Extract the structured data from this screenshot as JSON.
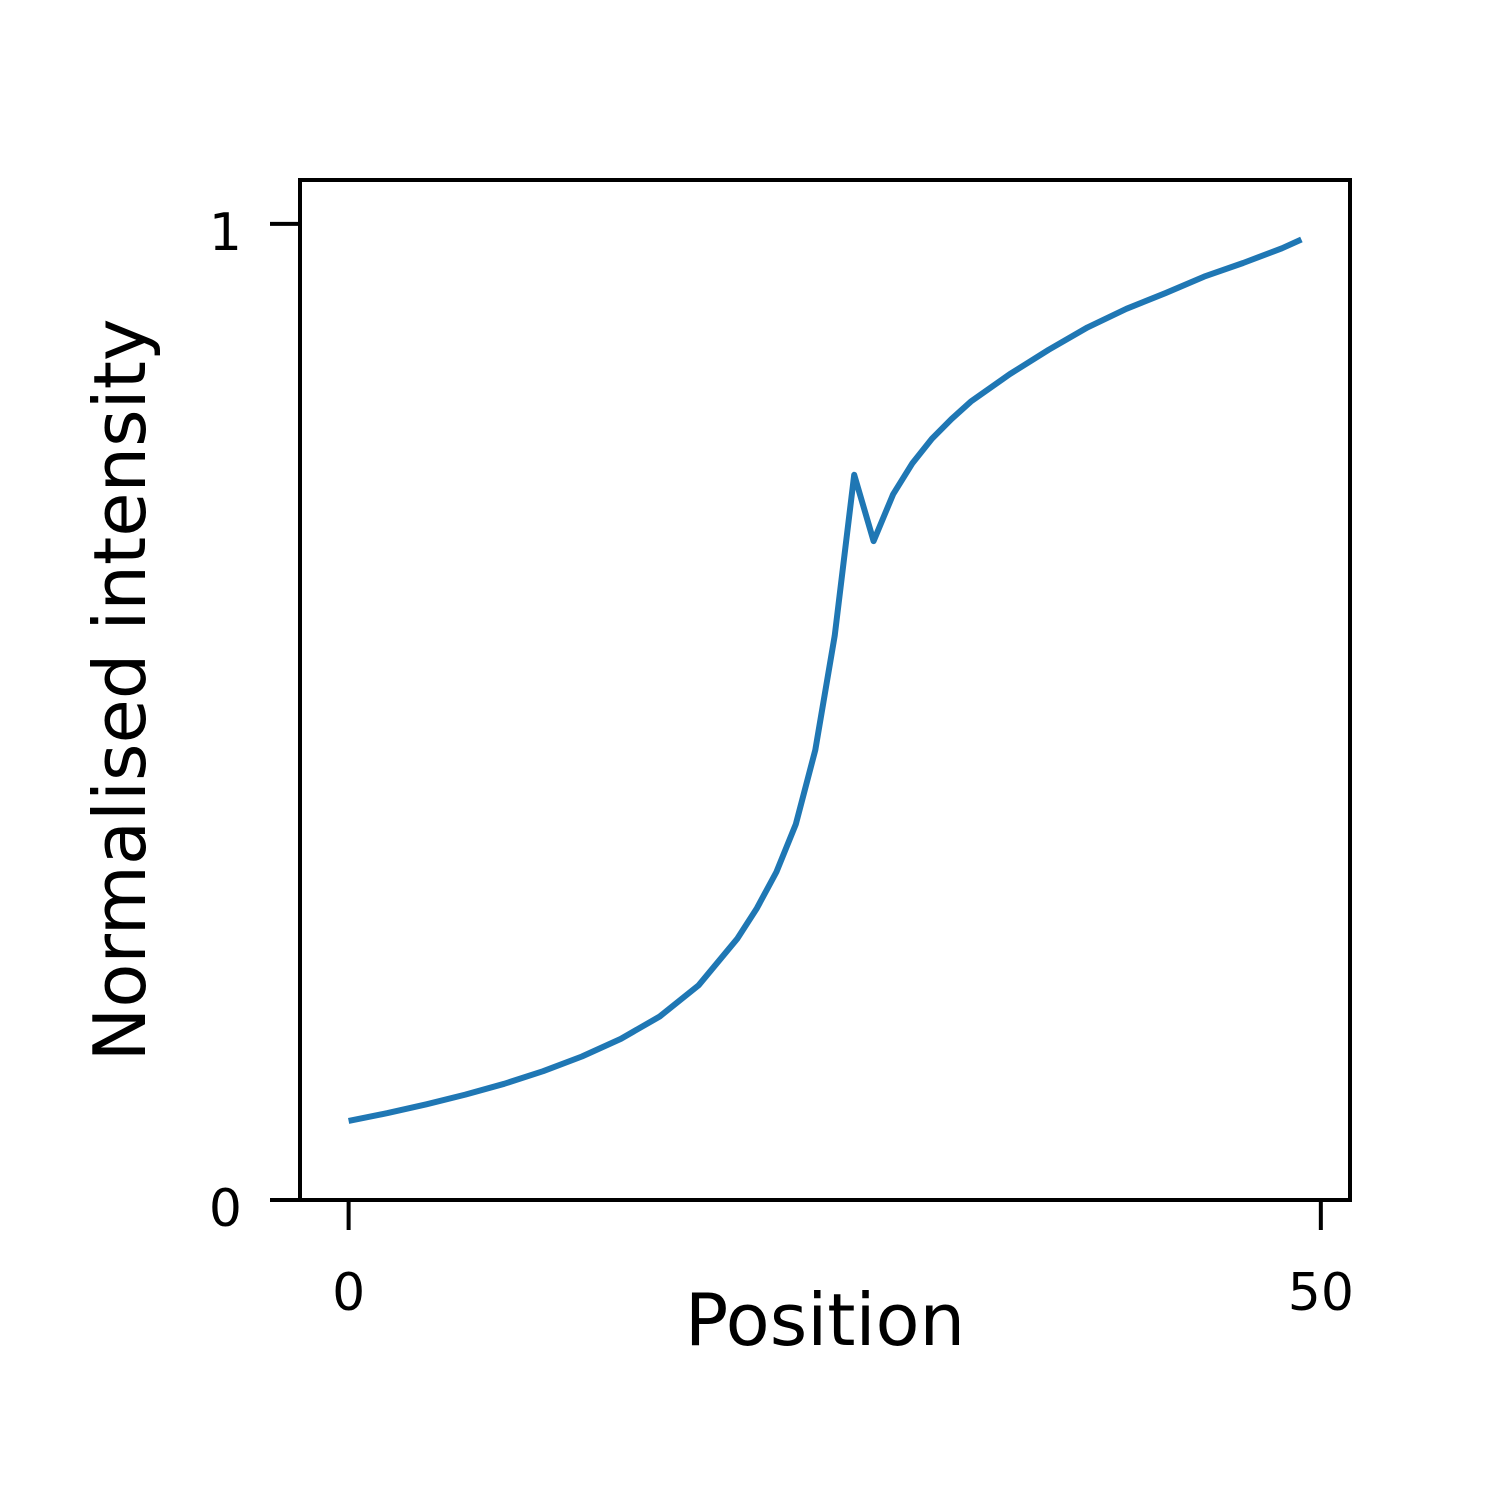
{
  "chart_data": {
    "type": "line",
    "title": "",
    "xlabel": "Position",
    "ylabel": "Normalised intensity",
    "xlim": [
      -2.5,
      51.5
    ],
    "ylim": [
      0,
      1.045
    ],
    "xticks": [
      0,
      50
    ],
    "xtick_labels": [
      "0",
      "50"
    ],
    "yticks": [
      0,
      1
    ],
    "ytick_labels": [
      "0",
      "1"
    ],
    "grid": false,
    "legend": "none",
    "series": [
      {
        "color": "#1f77b4",
        "x": [
          0,
          2,
          4,
          6,
          8,
          10,
          12,
          14,
          16,
          18,
          20,
          21,
          22,
          23,
          24,
          25,
          26,
          27,
          28,
          29,
          30,
          31,
          32,
          34,
          36,
          38,
          40,
          42,
          44,
          46,
          48,
          49
        ],
        "y": [
          0.081,
          0.089,
          0.098,
          0.108,
          0.119,
          0.132,
          0.147,
          0.165,
          0.188,
          0.22,
          0.268,
          0.299,
          0.336,
          0.385,
          0.461,
          0.578,
          0.743,
          0.675,
          0.723,
          0.755,
          0.78,
          0.8,
          0.818,
          0.846,
          0.871,
          0.894,
          0.913,
          0.929,
          0.946,
          0.96,
          0.975,
          0.984
        ]
      }
    ]
  }
}
